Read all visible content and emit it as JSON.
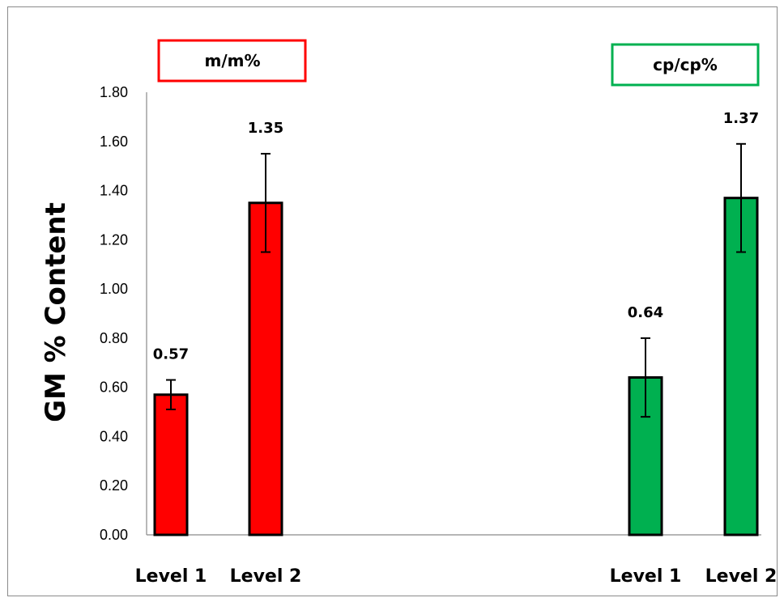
{
  "chart_data": {
    "type": "bar",
    "ylabel": "GM % Content",
    "ylim": [
      0,
      1.8
    ],
    "ytick_step": 0.2,
    "grid": false,
    "groups": [
      {
        "name": "m/m%",
        "color": "#ff0000",
        "categories": [
          "Level 1",
          "Level 2"
        ],
        "values": [
          0.57,
          1.35
        ],
        "errors": [
          0.06,
          0.2
        ],
        "value_labels": [
          "0.57",
          "1.35"
        ]
      },
      {
        "name": "cp/cp%",
        "color": "#00b050",
        "categories": [
          "Level 1",
          "Level 2"
        ],
        "values": [
          0.64,
          1.37
        ],
        "errors": [
          0.16,
          0.22
        ],
        "value_labels": [
          "0.64",
          "1.37"
        ]
      }
    ]
  }
}
